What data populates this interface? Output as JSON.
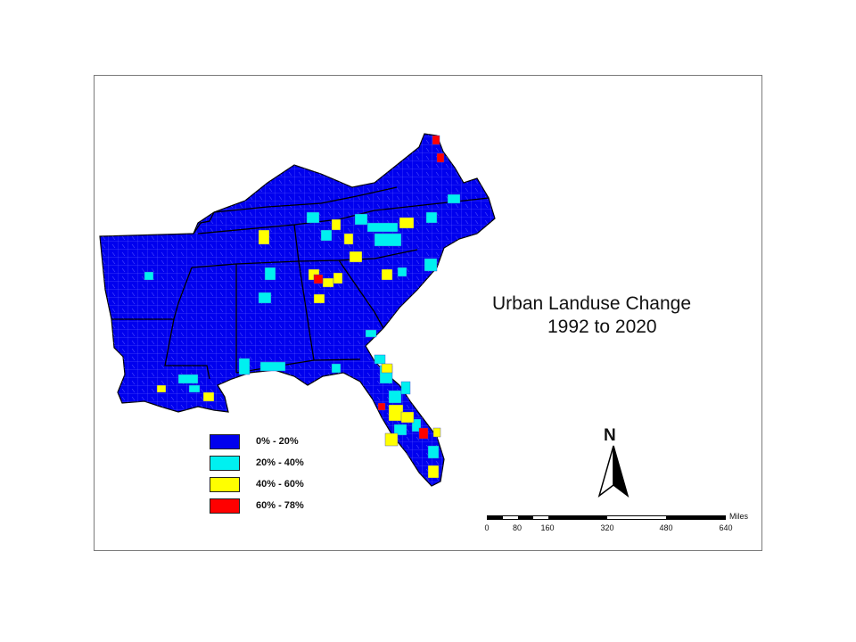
{
  "title": {
    "line1": "Urban Landuse Change",
    "line2": "1992 to 2020"
  },
  "legend": [
    {
      "label": "0% - 20%",
      "color": "#0000ee"
    },
    {
      "label": "20% - 40%",
      "color": "#00f0f0"
    },
    {
      "label": "40% - 60%",
      "color": "#ffff00"
    },
    {
      "label": "60% - 78%",
      "color": "#ff0000"
    }
  ],
  "north_arrow": {
    "label": "N"
  },
  "scale_bar": {
    "unit": "Miles",
    "ticks": [
      "0",
      "80",
      "160",
      "320",
      "480",
      "640"
    ]
  }
}
